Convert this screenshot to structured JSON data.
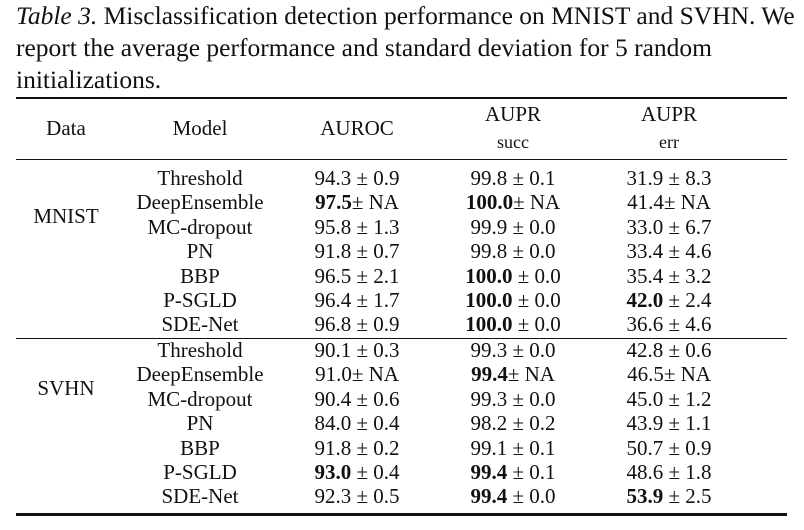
{
  "caption": {
    "label": "Table 3.",
    "text": "Misclassification detection performance on MNIST and SVHN. We report the average performance and standard deviation for 5 random initializations."
  },
  "headers": {
    "data": "Data",
    "model": "Model",
    "auroc": "AUROC",
    "aupr_succ": "AUPR",
    "aupr_succ_sub": "succ",
    "aupr_err": "AUPR",
    "aupr_err_sub": "err"
  },
  "groups": [
    {
      "name": "MNIST",
      "rows": [
        {
          "model": "Threshold",
          "auroc": {
            "v": "94.3",
            "sd": "0.9"
          },
          "aupr_succ": {
            "v": "99.8",
            "sd": "0.1"
          },
          "aupr_err": {
            "v": "31.9",
            "sd": "8.3"
          }
        },
        {
          "model": "DeepEnsemble",
          "auroc": {
            "v": "97.5",
            "sd": "NA",
            "bold": true
          },
          "aupr_succ": {
            "v": "100.0",
            "sd": "NA",
            "bold": true
          },
          "aupr_err": {
            "v": "41.4",
            "sd": "NA"
          }
        },
        {
          "model": "MC-dropout",
          "auroc": {
            "v": "95.8",
            "sd": "1.3"
          },
          "aupr_succ": {
            "v": "99.9",
            "sd": "0.0"
          },
          "aupr_err": {
            "v": "33.0",
            "sd": "6.7"
          }
        },
        {
          "model": "PN",
          "auroc": {
            "v": "91.8",
            "sd": "0.7"
          },
          "aupr_succ": {
            "v": "99.8",
            "sd": "0.0"
          },
          "aupr_err": {
            "v": "33.4",
            "sd": "4.6"
          }
        },
        {
          "model": "BBP",
          "auroc": {
            "v": "96.5",
            "sd": "2.1"
          },
          "aupr_succ": {
            "v": "100.0",
            "sd": "0.0",
            "bold": true
          },
          "aupr_err": {
            "v": "35.4",
            "sd": "3.2"
          }
        },
        {
          "model": "P-SGLD",
          "auroc": {
            "v": "96.4",
            "sd": "1.7"
          },
          "aupr_succ": {
            "v": "100.0",
            "sd": "0.0",
            "bold": true
          },
          "aupr_err": {
            "v": "42.0",
            "sd": "2.4",
            "bold": true
          }
        },
        {
          "model": "SDE-Net",
          "auroc": {
            "v": "96.8",
            "sd": "0.9"
          },
          "aupr_succ": {
            "v": "100.0",
            "sd": "0.0",
            "bold": true
          },
          "aupr_err": {
            "v": "36.6",
            "sd": "4.6"
          }
        }
      ]
    },
    {
      "name": "SVHN",
      "rows": [
        {
          "model": "Threshold",
          "auroc": {
            "v": "90.1",
            "sd": "0.3"
          },
          "aupr_succ": {
            "v": "99.3",
            "sd": "0.0"
          },
          "aupr_err": {
            "v": "42.8",
            "sd": "0.6"
          }
        },
        {
          "model": "DeepEnsemble",
          "auroc": {
            "v": "91.0",
            "sd": "NA"
          },
          "aupr_succ": {
            "v": "99.4",
            "sd": "NA",
            "bold": true
          },
          "aupr_err": {
            "v": "46.5",
            "sd": "NA"
          }
        },
        {
          "model": "MC-dropout",
          "auroc": {
            "v": "90.4",
            "sd": "0.6"
          },
          "aupr_succ": {
            "v": "99.3",
            "sd": "0.0"
          },
          "aupr_err": {
            "v": "45.0",
            "sd": "1.2"
          }
        },
        {
          "model": "PN",
          "auroc": {
            "v": "84.0",
            "sd": "0.4"
          },
          "aupr_succ": {
            "v": "98.2",
            "sd": "0.2"
          },
          "aupr_err": {
            "v": "43.9",
            "sd": "1.1"
          }
        },
        {
          "model": "BBP",
          "auroc": {
            "v": "91.8",
            "sd": "0.2"
          },
          "aupr_succ": {
            "v": "99.1",
            "sd": "0.1"
          },
          "aupr_err": {
            "v": "50.7",
            "sd": "0.9"
          }
        },
        {
          "model": "P-SGLD",
          "auroc": {
            "v": "93.0",
            "sd": "0.4",
            "bold": true
          },
          "aupr_succ": {
            "v": "99.4",
            "sd": "0.1",
            "bold": true
          },
          "aupr_err": {
            "v": "48.6",
            "sd": "1.8"
          }
        },
        {
          "model": "SDE-Net",
          "auroc": {
            "v": "92.3",
            "sd": "0.5"
          },
          "aupr_succ": {
            "v": "99.4",
            "sd": "0.0",
            "bold": true
          },
          "aupr_err": {
            "v": "53.9",
            "sd": "2.5",
            "bold": true
          }
        }
      ]
    }
  ]
}
